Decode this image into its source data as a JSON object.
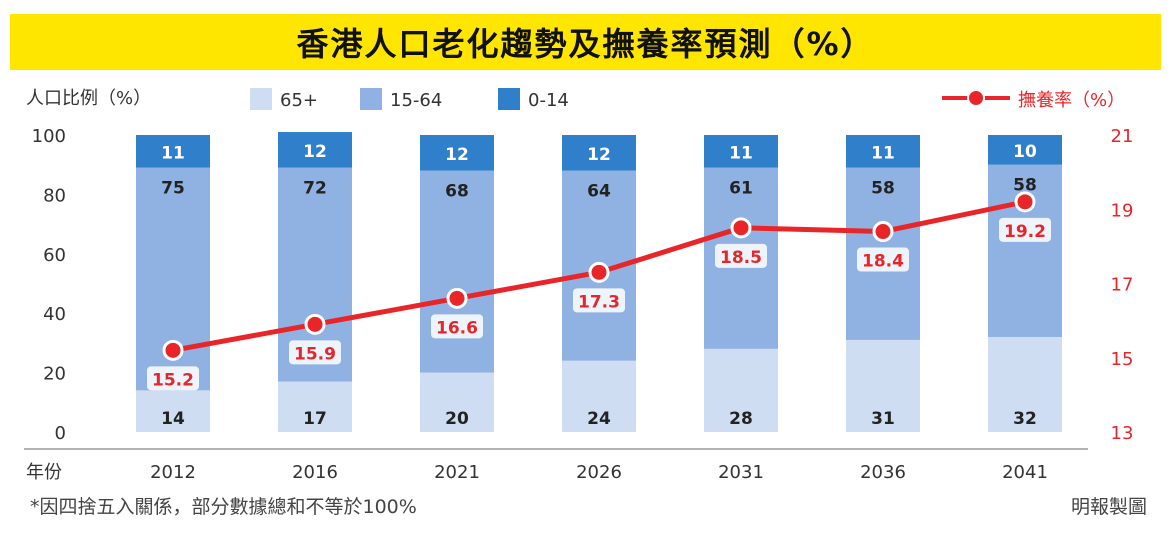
{
  "title": "香港人口老化趨勢及撫養率預測（%）",
  "legend": {
    "left_axis_label": "人口比例（%）",
    "items": [
      {
        "label": "65+",
        "color": "#CFDDF2"
      },
      {
        "label": "15-64",
        "color": "#8FB2E2"
      },
      {
        "label": "0-14",
        "color": "#2F7FCB"
      }
    ],
    "line_label": "撫養率（%）"
  },
  "x_prefix": "年份",
  "footnote": "*因四捨五入關係，部分數據總和不等於100%",
  "source": "明報製圖",
  "colors": {
    "line": "#E8262A",
    "old": "#CFDDF2",
    "work": "#8FB2E2",
    "young": "#2F7FCB",
    "title_bg": "#FFE600"
  },
  "chart_data": {
    "type": "bar",
    "stacked": true,
    "categories": [
      "2012",
      "2016",
      "2021",
      "2026",
      "2031",
      "2036",
      "2041"
    ],
    "series": [
      {
        "name": "65+",
        "values": [
          14,
          17,
          20,
          24,
          28,
          31,
          32
        ]
      },
      {
        "name": "15-64",
        "values": [
          75,
          72,
          68,
          64,
          61,
          58,
          58
        ]
      },
      {
        "name": "0-14",
        "values": [
          11,
          12,
          12,
          12,
          11,
          11,
          10
        ]
      },
      {
        "name": "撫養率（%）",
        "type": "line",
        "axis": "right",
        "values": [
          15.2,
          15.9,
          16.6,
          17.3,
          18.5,
          18.4,
          19.2
        ]
      }
    ],
    "ylim": [
      0,
      100
    ],
    "yticks": [
      0,
      20,
      40,
      60,
      80,
      100
    ],
    "y2lim": [
      13,
      21
    ],
    "y2ticks": [
      13,
      15,
      17,
      19,
      21
    ]
  }
}
